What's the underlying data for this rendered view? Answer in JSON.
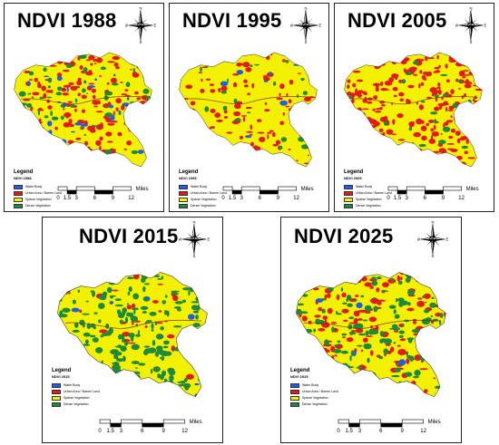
{
  "colors": {
    "water": "#1f5ee8",
    "urban": "#e31a1c",
    "sparse": "#f3f000",
    "dense": "#1e8a3a"
  },
  "panels": [
    {
      "key": "p1988",
      "title": "NDVI 1988",
      "subtitle": "NDVI 1988"
    },
    {
      "key": "p1995",
      "title": "NDVI 1995",
      "subtitle": "NDVI 1995"
    },
    {
      "key": "p2005",
      "title": "NDVI 2005",
      "subtitle": "NDVI 2005"
    },
    {
      "key": "p2015",
      "title": "NDVI 2015",
      "subtitle": "NDVI 2015"
    },
    {
      "key": "p2025",
      "title": "NDVI 2025",
      "subtitle": "NDVI 2025"
    }
  ],
  "legend": {
    "title": "Legend",
    "items": [
      {
        "label": "Water Body",
        "color": "#1f5ee8"
      },
      {
        "label": "Urban Area / Barren Land",
        "color": "#e31a1c"
      },
      {
        "label": "Sparse Vegetation",
        "color": "#f3f000"
      },
      {
        "label": "Dense Vegetation",
        "color": "#1e8a3a"
      }
    ]
  },
  "scale": {
    "ticks": [
      "0",
      "1.5",
      "3",
      "6",
      "9",
      "12"
    ],
    "unit": "Miles"
  },
  "north_icon": "north-arrow-compass-icon",
  "class_mix": {
    "p1988": {
      "water": 0.03,
      "urban": 0.28,
      "sparse": 0.6,
      "dense": 0.09
    },
    "p1995": {
      "water": 0.01,
      "urban": 0.18,
      "sparse": 0.76,
      "dense": 0.05
    },
    "p2005": {
      "water": 0.0,
      "urban": 0.42,
      "sparse": 0.54,
      "dense": 0.04
    },
    "p2015": {
      "water": 0.01,
      "urban": 0.06,
      "sparse": 0.63,
      "dense": 0.3
    },
    "p2025": {
      "water": 0.01,
      "urban": 0.22,
      "sparse": 0.52,
      "dense": 0.25
    }
  }
}
